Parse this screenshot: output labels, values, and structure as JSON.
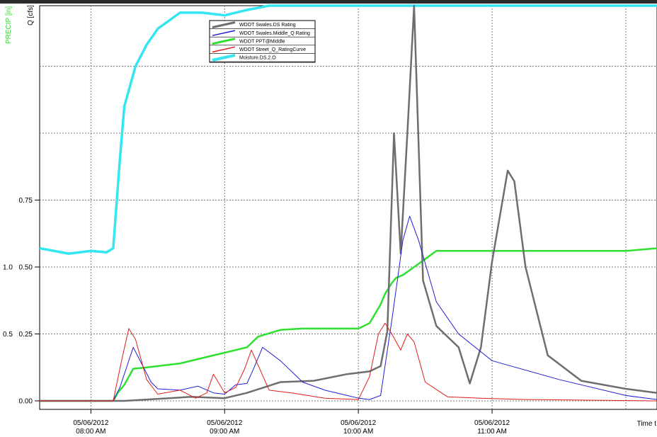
{
  "chart_data": {
    "type": "line",
    "title": "",
    "ylabel_left": "PRECIP [in]",
    "ylabel_right": "Q [cfs]",
    "xlabel": "Time t",
    "grid": true,
    "legend_position": "top-center",
    "colors": {
      "WDOT Swales.DS Rating": "#6e6e6e",
      "WDOT Swales.Middle_Q Rating": "#1f1fd6",
      "WDOT PPT@Middle": "#2fe02f",
      "WDOT Street_Q_RatingCurve": "#e01e1e",
      "Moisture.DS.2.O": "#33e6f2",
      "precip_axis_label": "#33dd33"
    },
    "x_ticks": [
      {
        "date": "05/06/2012",
        "time": "08:00 AM"
      },
      {
        "date": "05/06/2012",
        "time": "09:00 AM"
      },
      {
        "date": "05/06/2012",
        "time": "10:00 AM"
      },
      {
        "date": "05/06/2012",
        "time": "11:00 AM"
      }
    ],
    "x_range": [
      "07:37",
      "12:14"
    ],
    "y_ticks_precip": [
      "0.5",
      "1.0"
    ],
    "y_ticks_q": [
      "0.00",
      "0.25",
      "0.50",
      "0.75"
    ],
    "ylim_q": [
      0,
      1.5
    ],
    "ylim_precip": [
      0,
      1.5
    ],
    "legend": [
      "WDOT Swales.DS Rating",
      "WDOT Swales.Middle_Q Rating",
      "WDOT PPT@Middle",
      "WDOT Street_Q_RatingCurve",
      "Moisture.DS.2.O"
    ],
    "series": [
      {
        "name": "WDOT Swales.DS Rating",
        "x": [
          "07:37",
          "08:15",
          "08:25",
          "08:45",
          "09:00",
          "09:10",
          "09:25",
          "09:40",
          "09:55",
          "10:05",
          "10:10",
          "10:13",
          "10:16",
          "10:19",
          "10:22",
          "10:25",
          "10:29",
          "10:35",
          "10:45",
          "10:50",
          "10:55",
          "11:00",
          "11:07",
          "11:10",
          "11:15",
          "11:25",
          "11:40",
          "12:00",
          "12:14"
        ],
        "y": [
          0,
          0,
          0.005,
          0.015,
          0.01,
          0.03,
          0.07,
          0.075,
          0.1,
          0.11,
          0.13,
          0.26,
          1.0,
          0.55,
          1.0,
          1.48,
          0.45,
          0.28,
          0.2,
          0.065,
          0.2,
          0.52,
          0.86,
          0.82,
          0.5,
          0.17,
          0.075,
          0.045,
          0.03
        ]
      },
      {
        "name": "WDOT Swales.Middle_Q Rating",
        "x": [
          "07:37",
          "08:10",
          "08:13",
          "08:19",
          "08:27",
          "08:30",
          "08:40",
          "08:48",
          "08:55",
          "09:00",
          "09:05",
          "09:10",
          "09:13",
          "09:17",
          "09:25",
          "09:35",
          "09:45",
          "09:55",
          "10:00",
          "10:05",
          "10:10",
          "10:15",
          "10:20",
          "10:23",
          "10:27",
          "10:35",
          "10:45",
          "11:00",
          "11:30",
          "12:00",
          "12:14"
        ],
        "y": [
          0,
          0,
          0.05,
          0.2,
          0.07,
          0.045,
          0.04,
          0.055,
          0.03,
          0.025,
          0.06,
          0.065,
          0.12,
          0.2,
          0.15,
          0.07,
          0.04,
          0.02,
          0.01,
          0.005,
          0.02,
          0.3,
          0.6,
          0.69,
          0.6,
          0.37,
          0.25,
          0.15,
          0.08,
          0.02,
          0.005
        ]
      },
      {
        "name": "WDOT PPT@Middle",
        "x": [
          "07:37",
          "08:10",
          "08:12",
          "08:15",
          "08:19",
          "08:25",
          "08:30",
          "08:40",
          "08:50",
          "09:00",
          "09:05",
          "09:10",
          "09:15",
          "09:25",
          "09:35",
          "09:45",
          "09:55",
          "10:00",
          "10:05",
          "10:10",
          "10:12",
          "10:15",
          "10:17",
          "10:20",
          "10:25",
          "10:30",
          "10:35",
          "11:00",
          "11:30",
          "12:00",
          "12:14"
        ],
        "y": [
          0,
          0,
          0.03,
          0.06,
          0.12,
          0.125,
          0.13,
          0.14,
          0.16,
          0.18,
          0.19,
          0.2,
          0.24,
          0.265,
          0.27,
          0.27,
          0.27,
          0.27,
          0.29,
          0.36,
          0.4,
          0.44,
          0.46,
          0.47,
          0.5,
          0.53,
          0.56,
          0.56,
          0.56,
          0.56,
          0.57
        ]
      },
      {
        "name": "WDOT Street_Q_RatingCurve",
        "x": [
          "07:37",
          "08:10",
          "08:14",
          "08:17",
          "08:20",
          "08:25",
          "08:30",
          "08:40",
          "08:47",
          "08:52",
          "08:55",
          "09:00",
          "09:05",
          "09:09",
          "09:12",
          "09:20",
          "09:30",
          "09:45",
          "10:00",
          "10:05",
          "10:09",
          "10:12",
          "10:15",
          "10:19",
          "10:22",
          "10:25",
          "10:30",
          "10:40",
          "10:55",
          "11:15",
          "12:14"
        ],
        "y": [
          0,
          0,
          0.16,
          0.27,
          0.23,
          0.08,
          0.025,
          0.04,
          0.01,
          0.03,
          0.1,
          0.03,
          0.05,
          0.12,
          0.19,
          0.04,
          0.03,
          0.01,
          0.005,
          0.09,
          0.25,
          0.29,
          0.25,
          0.19,
          0.25,
          0.22,
          0.07,
          0.015,
          0.01,
          0.005,
          0
        ]
      },
      {
        "name": "Moisture.DS.2.O",
        "x": [
          "07:37",
          "07:50",
          "08:00",
          "08:07",
          "08:10",
          "08:13",
          "08:15",
          "08:20",
          "08:25",
          "08:30",
          "08:40",
          "08:50",
          "09:00",
          "09:10",
          "09:20",
          "09:30",
          "09:40",
          "09:50",
          "10:00",
          "10:05",
          "10:10",
          "10:15",
          "10:20",
          "10:30",
          "10:40",
          "10:50",
          "11:00",
          "11:10",
          "11:20",
          "11:30",
          "11:40",
          "11:50",
          "12:00",
          "12:14"
        ],
        "y": [
          0.57,
          0.55,
          0.56,
          0.555,
          0.57,
          0.9,
          1.1,
          1.25,
          1.33,
          1.39,
          1.45,
          1.45,
          1.44,
          1.46,
          1.48,
          1.49,
          1.5,
          1.5,
          1.52,
          1.55,
          1.58,
          1.6,
          1.59,
          1.63,
          1.64,
          1.63,
          1.62,
          1.63,
          1.64,
          1.62,
          1.6,
          1.58,
          1.54,
          1.52
        ]
      }
    ]
  }
}
